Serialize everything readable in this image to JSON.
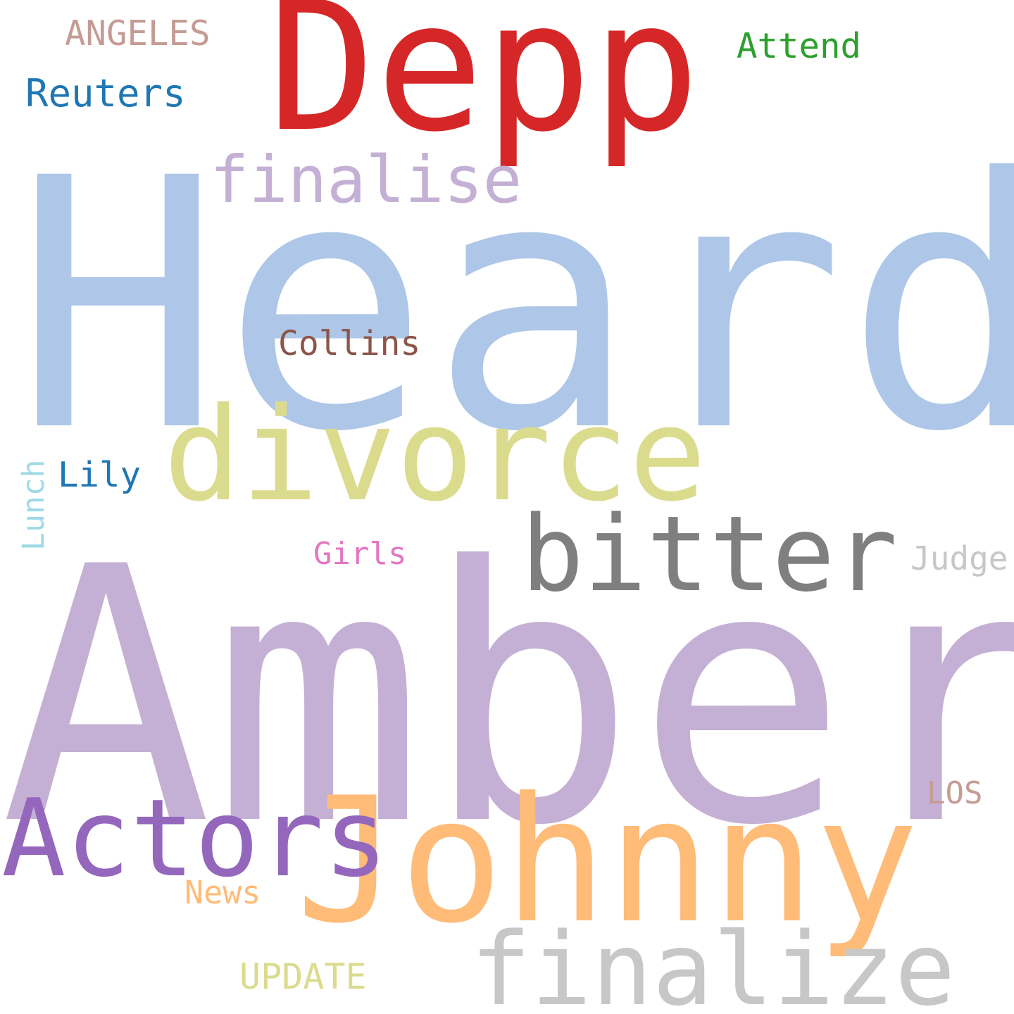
{
  "words": {
    "heard": {
      "text": "Heard",
      "color": "#aec7e8"
    },
    "amber": {
      "text": "Amber",
      "color": "#c5b0d5"
    },
    "depp": {
      "text": "Depp",
      "color": "#d62728"
    },
    "johnny": {
      "text": "Johnny",
      "color": "#ffbb78"
    },
    "divorce": {
      "text": "divorce",
      "color": "#dbdb8d"
    },
    "bitter": {
      "text": "bitter",
      "color": "#7f7f7f"
    },
    "actors": {
      "text": "Actors",
      "color": "#9467bd"
    },
    "finalize": {
      "text": "finalize",
      "color": "#c7c7c7"
    },
    "finalise": {
      "text": "finalise",
      "color": "#c5b0d5"
    },
    "collins": {
      "text": "Collins",
      "color": "#8c564b"
    },
    "angeles": {
      "text": "ANGELES",
      "color": "#c49c94"
    },
    "reuters": {
      "text": "Reuters",
      "color": "#1f77b4"
    },
    "attend": {
      "text": "Attend",
      "color": "#2ca02c"
    },
    "lily": {
      "text": "Lily",
      "color": "#1f77b4"
    },
    "lunch": {
      "text": "Lunch",
      "color": "#9edae5"
    },
    "girls": {
      "text": "Girls",
      "color": "#e377c2"
    },
    "judge": {
      "text": "Judge",
      "color": "#c7c7c7"
    },
    "los": {
      "text": "LOS",
      "color": "#c49c94"
    },
    "news": {
      "text": "News",
      "color": "#ffbb78"
    },
    "update": {
      "text": "UPDATE",
      "color": "#dbdb8d"
    }
  }
}
